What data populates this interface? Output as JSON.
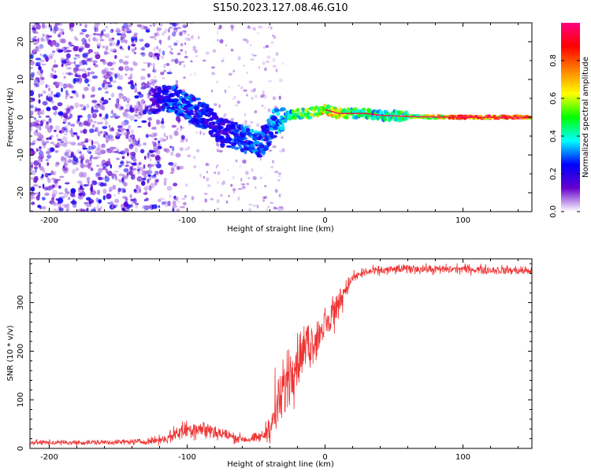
{
  "title": "S150.2023.127.08.46.G10",
  "chart_data": [
    {
      "type": "heatmap",
      "xlabel": "Height of straight line (km)",
      "ylabel": "Frequency (Hz)",
      "xlim": [
        -214,
        150
      ],
      "ylim": [
        -25,
        25
      ],
      "xticks": [
        -200,
        -100,
        0,
        100
      ],
      "xtick_labels": [
        "-200",
        "-100",
        "0",
        "100"
      ],
      "yticks": [
        -20,
        -10,
        0,
        10,
        20
      ],
      "ytick_labels": [
        "-20",
        "-10",
        "0",
        "10",
        "20"
      ],
      "ridge": {
        "x": [
          -125,
          -115,
          -105,
          -95,
          -85,
          -75,
          -65,
          -55,
          -48,
          -42,
          -38,
          -34,
          -28,
          -20,
          -12,
          -5,
          0,
          5,
          10,
          20,
          30,
          40,
          55,
          70,
          100,
          150
        ],
        "y": [
          4,
          5,
          4,
          2,
          0,
          -4,
          -5,
          -6,
          -7,
          -5,
          -2,
          -1,
          0,
          1,
          1,
          1.5,
          2,
          1.5,
          1,
          1,
          1,
          0.5,
          0.3,
          0.1,
          0,
          0
        ],
        "intensity": [
          0.2,
          0.3,
          0.35,
          0.3,
          0.28,
          0.25,
          0.3,
          0.35,
          0.35,
          0.3,
          0.35,
          0.4,
          0.45,
          0.55,
          0.6,
          0.7,
          0.75,
          0.7,
          0.7,
          0.55,
          0.5,
          0.5,
          0.55,
          0.65,
          0.95,
          1.0
        ]
      },
      "noise_region": [
        -214,
        -120
      ],
      "colorbar": {
        "label": "Normalized spectral amplitude",
        "range": [
          0,
          1
        ],
        "ticks": [
          0.0,
          0.2,
          0.4,
          0.6,
          0.8
        ],
        "tick_labels": [
          "0.0",
          "0.2",
          "0.4",
          "0.6",
          "0.8"
        ],
        "colors": [
          "#ffffff",
          "#6600cc",
          "#0000ff",
          "#00ffff",
          "#00ff00",
          "#ffff00",
          "#ff8000",
          "#ff0000",
          "#ff0080"
        ]
      }
    },
    {
      "type": "line",
      "xlabel": "Height of straight line (km)",
      "ylabel": "SNR (10 * v/v)",
      "xlim": [
        -214,
        150
      ],
      "ylim": [
        0,
        390
      ],
      "xticks": [
        -200,
        -100,
        0,
        100
      ],
      "xtick_labels": [
        "-200",
        "-100",
        "0",
        "100"
      ],
      "yticks": [
        0,
        100,
        200,
        300
      ],
      "ytick_labels": [
        "0",
        "100",
        "200",
        "300"
      ],
      "color": "#ee3333",
      "series": [
        {
          "name": "SNR",
          "x": [
            -214,
            -180,
            -150,
            -130,
            -115,
            -105,
            -95,
            -85,
            -75,
            -65,
            -55,
            -45,
            -38,
            -32,
            -27,
            -22,
            -17,
            -12,
            -7,
            -2,
            3,
            8,
            14,
            20,
            28,
            38,
            50,
            65,
            80,
            100,
            120,
            140,
            150
          ],
          "y": [
            12,
            12,
            13,
            14,
            20,
            35,
            42,
            38,
            30,
            22,
            18,
            25,
            55,
            100,
            150,
            175,
            195,
            210,
            225,
            245,
            260,
            290,
            325,
            350,
            362,
            365,
            368,
            370,
            368,
            369,
            367,
            366,
            365
          ],
          "noise_amplitude": [
            5,
            5,
            5,
            6,
            10,
            18,
            20,
            18,
            14,
            10,
            8,
            12,
            35,
            55,
            65,
            55,
            50,
            45,
            40,
            35,
            35,
            30,
            20,
            12,
            10,
            9,
            9,
            9,
            9,
            9,
            9,
            9,
            9
          ]
        }
      ]
    }
  ]
}
